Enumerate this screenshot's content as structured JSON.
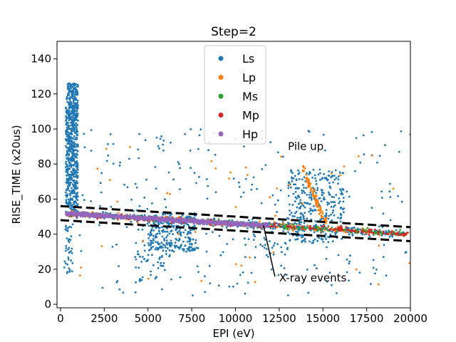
{
  "chart_data": {
    "type": "scatter",
    "title": "Step=2",
    "xlabel": "EPI (eV)",
    "ylabel": "RISE_TIME (x20us)",
    "xlim": [
      -200,
      20000
    ],
    "ylim": [
      -2,
      150
    ],
    "xticks": [
      0,
      2500,
      5000,
      7500,
      10000,
      12500,
      15000,
      17500,
      20000
    ],
    "yticks": [
      0,
      20,
      40,
      60,
      80,
      100,
      120,
      140
    ],
    "legend_position": "top-center",
    "series": [
      {
        "name": "Ls",
        "color": "#1f77b4"
      },
      {
        "name": "Lp",
        "color": "#ff7f0e"
      },
      {
        "name": "Ms",
        "color": "#2ca02c"
      },
      {
        "name": "Mp",
        "color": "#d62728"
      },
      {
        "name": "Hp",
        "color": "#9467bd"
      }
    ],
    "boundary_lines": [
      {
        "x": [
          0,
          20000
        ],
        "y": [
          56,
          44
        ],
        "style": "dashed",
        "color": "#000000"
      },
      {
        "x": [
          0,
          20000
        ],
        "y": [
          48,
          36
        ],
        "style": "dashed",
        "color": "#000000"
      }
    ],
    "annotations": [
      {
        "text": "Pile up",
        "x": 13000,
        "y": 90
      },
      {
        "text": "X-ray events",
        "x": 12500,
        "y": 15,
        "arrow_to": [
          11600,
          45
        ]
      }
    ]
  }
}
